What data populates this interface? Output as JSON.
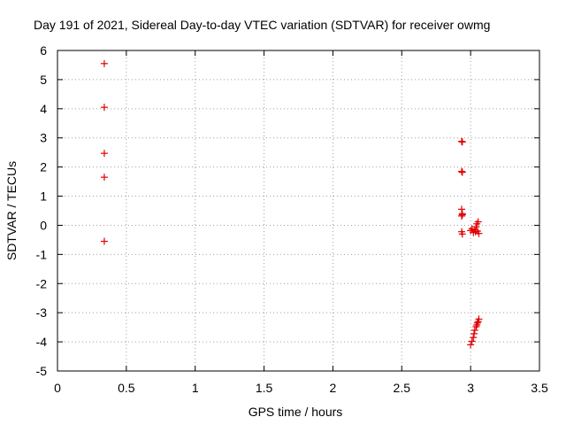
{
  "chart_data": {
    "type": "scatter",
    "title": "Day 191 of 2021, Sidereal Day-to-day VTEC variation (SDTVAR) for receiver owmg",
    "xlabel": "GPS time / hours",
    "ylabel": "SDTVAR / TECUs",
    "xlim": [
      0,
      3.5
    ],
    "ylim": [
      -5,
      6
    ],
    "xticks": [
      "0",
      "0.5",
      "1",
      "1.5",
      "2",
      "2.5",
      "3",
      "3.5"
    ],
    "yticks": [
      "-5",
      "-4",
      "-3",
      "-2",
      "-1",
      "0",
      "1",
      "2",
      "3",
      "4",
      "5",
      "6"
    ],
    "grid": true,
    "marker": "+",
    "marker_color": "#e00000",
    "series": [
      {
        "name": "SDTVAR",
        "points": [
          [
            0.34,
            5.55
          ],
          [
            0.34,
            4.05
          ],
          [
            0.34,
            2.47
          ],
          [
            0.34,
            1.65
          ],
          [
            0.34,
            -0.55
          ],
          [
            2.935,
            2.88
          ],
          [
            2.94,
            2.86
          ],
          [
            2.935,
            1.85
          ],
          [
            2.94,
            1.82
          ],
          [
            2.935,
            0.55
          ],
          [
            2.94,
            0.4
          ],
          [
            2.935,
            0.32
          ],
          [
            2.94,
            0.36
          ],
          [
            2.935,
            -0.22
          ],
          [
            2.94,
            -0.3
          ],
          [
            3.0,
            -0.18
          ],
          [
            3.01,
            -0.12
          ],
          [
            3.02,
            -0.25
          ],
          [
            3.03,
            -0.15
          ],
          [
            3.04,
            -0.05
          ],
          [
            3.045,
            0.05
          ],
          [
            3.05,
            -0.2
          ],
          [
            3.055,
            0.12
          ],
          [
            3.06,
            -0.28
          ],
          [
            3.035,
            -0.22
          ],
          [
            3.0,
            -4.1
          ],
          [
            3.01,
            -3.98
          ],
          [
            3.02,
            -3.85
          ],
          [
            3.025,
            -3.72
          ],
          [
            3.03,
            -3.6
          ],
          [
            3.04,
            -3.48
          ],
          [
            3.045,
            -3.42
          ],
          [
            3.05,
            -3.35
          ],
          [
            3.055,
            -3.3
          ],
          [
            3.06,
            -3.22
          ]
        ]
      }
    ]
  }
}
